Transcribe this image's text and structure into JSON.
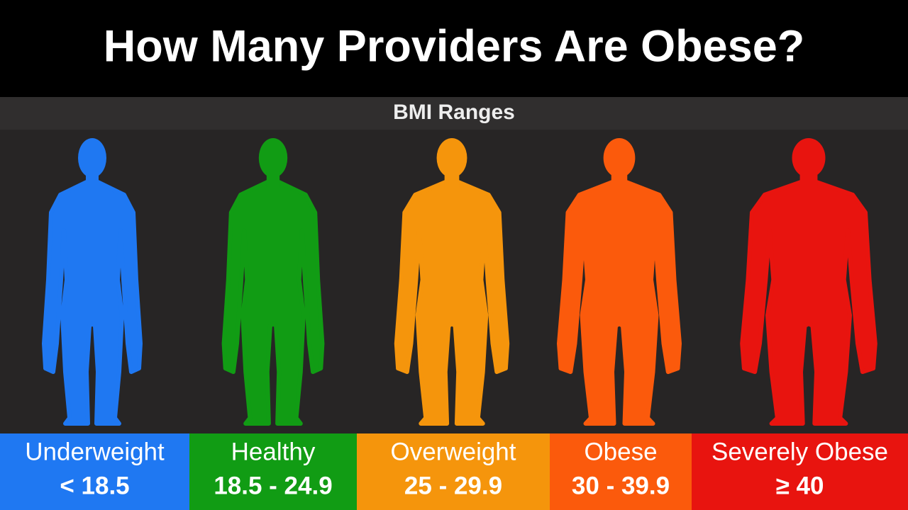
{
  "header": {
    "title": "How Many Providers Are Obese?"
  },
  "panel": {
    "title": "BMI Ranges"
  },
  "categories": [
    {
      "name": "Underweight",
      "range": "< 18.5",
      "color": "#1f78f2"
    },
    {
      "name": "Healthy",
      "range": "18.5 - 24.9",
      "color": "#119c14"
    },
    {
      "name": "Overweight",
      "range": "25 - 29.9",
      "color": "#f5950c"
    },
    {
      "name": "Obese",
      "range": "30 - 39.9",
      "color": "#fb5a0c"
    },
    {
      "name": "Severely Obese",
      "range": "≥ 40",
      "color": "#e8140f"
    }
  ]
}
